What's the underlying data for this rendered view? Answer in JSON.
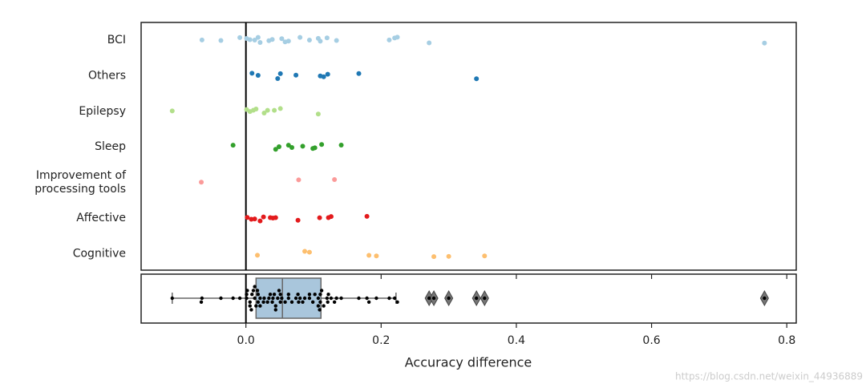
{
  "chart_data": {
    "type": "strip_box",
    "xlabel": "Accuracy difference",
    "watermark": "https://blog.csdn.net/weixin_44936889",
    "xlim": [
      -0.155,
      0.814
    ],
    "xticks": [
      {
        "value": 0,
        "label": "0.0"
      },
      0.2,
      0.4,
      0.6,
      0.8
    ],
    "series": [
      {
        "name": "BCI",
        "color": "#a6cee3",
        "values": [
          -0.065,
          -0.037,
          -0.009,
          0.001,
          0.006,
          0.013,
          0.018,
          0.021,
          0.034,
          0.039,
          0.053,
          0.058,
          0.063,
          0.08,
          0.094,
          0.107,
          0.11,
          0.12,
          0.134,
          0.212,
          0.22,
          0.224,
          0.271,
          0.767
        ]
      },
      {
        "name": "Others",
        "color": "#1f78b4",
        "values": [
          0.009,
          0.018,
          0.047,
          0.051,
          0.074,
          0.11,
          0.115,
          0.121,
          0.167,
          0.341
        ]
      },
      {
        "name": "Epilepsy",
        "color": "#b2df8a",
        "values": [
          -0.109,
          0.001,
          0.006,
          0.011,
          0.015,
          0.027,
          0.032,
          0.042,
          0.051,
          0.107
        ]
      },
      {
        "name": "Sleep",
        "color": "#33a02c",
        "values": [
          -0.019,
          0.044,
          0.049,
          0.063,
          0.068,
          0.084,
          0.099,
          0.102,
          0.112,
          0.141
        ]
      },
      {
        "name": "Improvement of\nprocessing tools",
        "color": "#fb9a99",
        "values": [
          -0.066,
          0.078,
          0.131
        ]
      },
      {
        "name": "Affective",
        "color": "#e31a1c",
        "values": [
          0.002,
          0.008,
          0.013,
          0.021,
          0.026,
          0.036,
          0.04,
          0.044,
          0.077,
          0.109,
          0.122,
          0.126,
          0.179
        ]
      },
      {
        "name": "Cognitive",
        "color": "#fdbf6f",
        "values": [
          0.017,
          0.087,
          0.094,
          0.182,
          0.193,
          0.278,
          0.3,
          0.353
        ]
      }
    ],
    "box": {
      "color": "#a9c6dc",
      "whislo": -0.109,
      "q1": 0.015,
      "med": 0.054,
      "q3": 0.111,
      "whishi": 0.222,
      "fliers": [
        0.271,
        0.278,
        0.3,
        0.341,
        0.353,
        0.767
      ]
    }
  }
}
